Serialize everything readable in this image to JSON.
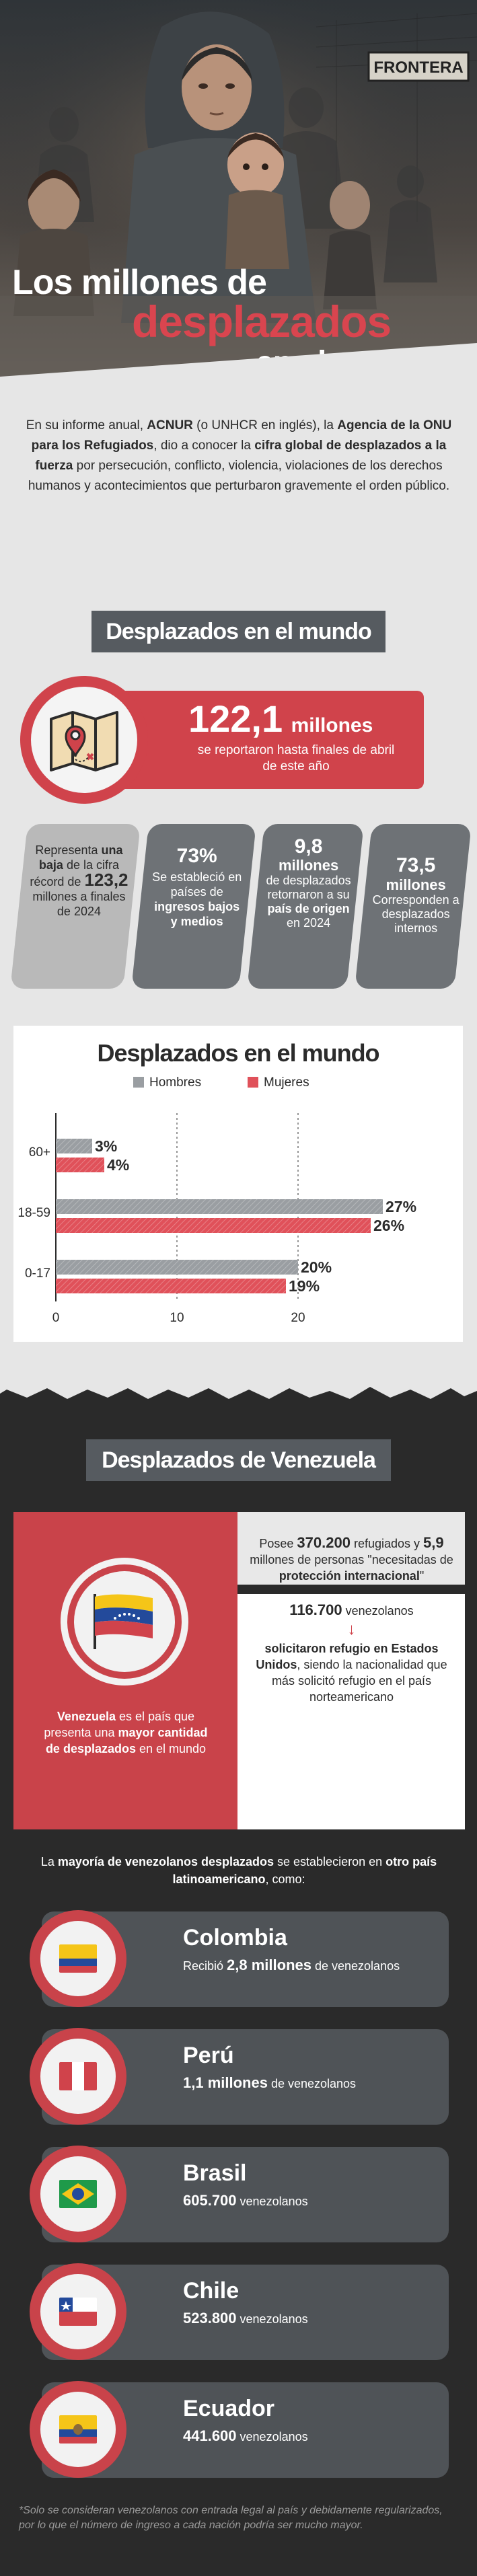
{
  "hero": {
    "sign": "FRONTERA",
    "title_line1": "Los millones de",
    "title_line2": "desplazados",
    "title_line3": "en el mundo"
  },
  "intro": {
    "p1": "En su informe anual, ",
    "b1": "ACNUR",
    "p2": " (o UNHCR en inglés), la ",
    "b2": "Agencia de la ONU para los Refugiados",
    "p3": ", dio a conocer la ",
    "b3": "cifra global de desplazados a la fuerza",
    "p4": " por persecución, conflicto, violencia, violaciones de los derechos humanos y acontecimientos que perturbaron gravemente el orden público."
  },
  "world": {
    "section_title": "Desplazados en el mundo",
    "big_number": "122,1",
    "big_unit": "millones",
    "big_sub": "se reportaron hasta finales de abril de este año",
    "cards": [
      {
        "a": "Representa ",
        "b": "una baja",
        "c": " de la cifra récord de ",
        "d": "123,2",
        "e": " millones a finales de 2024"
      },
      {
        "a": "73%",
        "b": "Se estableció en países de ",
        "c": "ingresos bajos y medios"
      },
      {
        "a": "9,8",
        "b": "millones",
        "c": "de desplazados retornaron a su ",
        "d": "país de origen",
        "e": " en 2024"
      },
      {
        "a": "73,5",
        "b": "millones",
        "c": "Corresponden a desplazados internos"
      }
    ]
  },
  "chart_data": {
    "type": "bar",
    "title": "Desplazados en el mundo",
    "categories": [
      "60+",
      "18-59",
      "0-17"
    ],
    "series": [
      {
        "name": "Hombres",
        "values": [
          3,
          27,
          20
        ],
        "color": "#9a9ea2"
      },
      {
        "name": "Mujeres",
        "values": [
          4,
          26,
          19
        ],
        "color": "#e0515a"
      }
    ],
    "value_labels": {
      "Hombres": [
        "3%",
        "27%",
        "20%"
      ],
      "Mujeres": [
        "4%",
        "26%",
        "19%"
      ]
    },
    "xlim": [
      0,
      30
    ],
    "xticks": [
      "0",
      "10",
      "20"
    ],
    "orientation": "horizontal",
    "legend": "top"
  },
  "venezuela": {
    "section_title": "Desplazados de Venezuela",
    "left_b1": "Venezuela",
    "left_t1": " es el país que presenta una ",
    "left_b2": "mayor cantidad de desplazados",
    "left_t2": " en el mundo",
    "r1_t1": "Posee ",
    "r1_b1": "370.200",
    "r1_t2": " refugiados y ",
    "r1_b2": "5,9",
    "r1_t3": " millones de personas \"necesitadas de ",
    "r1_b3": "protección internacional",
    "r1_t4": "\"",
    "r2_b1": "116.700",
    "r2_t1": " venezolanos",
    "r2_arrow": "↓",
    "r2_b2": "solicitaron refugio en Estados Unidos",
    "r2_t2": ", siendo la nacionalidad que más solicitó refugio en el país norteamericano",
    "lead_t1": "La ",
    "lead_b1": "mayoría de venezolanos desplazados",
    "lead_t2": " se establecieron en ",
    "lead_b2": "otro país latinoamericano",
    "lead_t3": ", como:"
  },
  "countries": [
    {
      "name": "Colombia",
      "pre": "Recibió ",
      "value": "2,8 millones",
      "post": " de venezolanos"
    },
    {
      "name": "Perú",
      "pre": "",
      "value": "1,1 millones",
      "post": " de venezolanos"
    },
    {
      "name": "Brasil",
      "pre": "",
      "value": "605.700",
      "post": " venezolanos"
    },
    {
      "name": "Chile",
      "pre": "",
      "value": "523.800",
      "post": " venezolanos"
    },
    {
      "name": "Ecuador",
      "pre": "",
      "value": "441.600",
      "post": " venezolanos"
    }
  ],
  "footnote": "*Solo se consideran venezolanos con entrada legal al país y debidamente regularizados, por lo que el número de ingreso a cada nación podría ser mucho mayor."
}
